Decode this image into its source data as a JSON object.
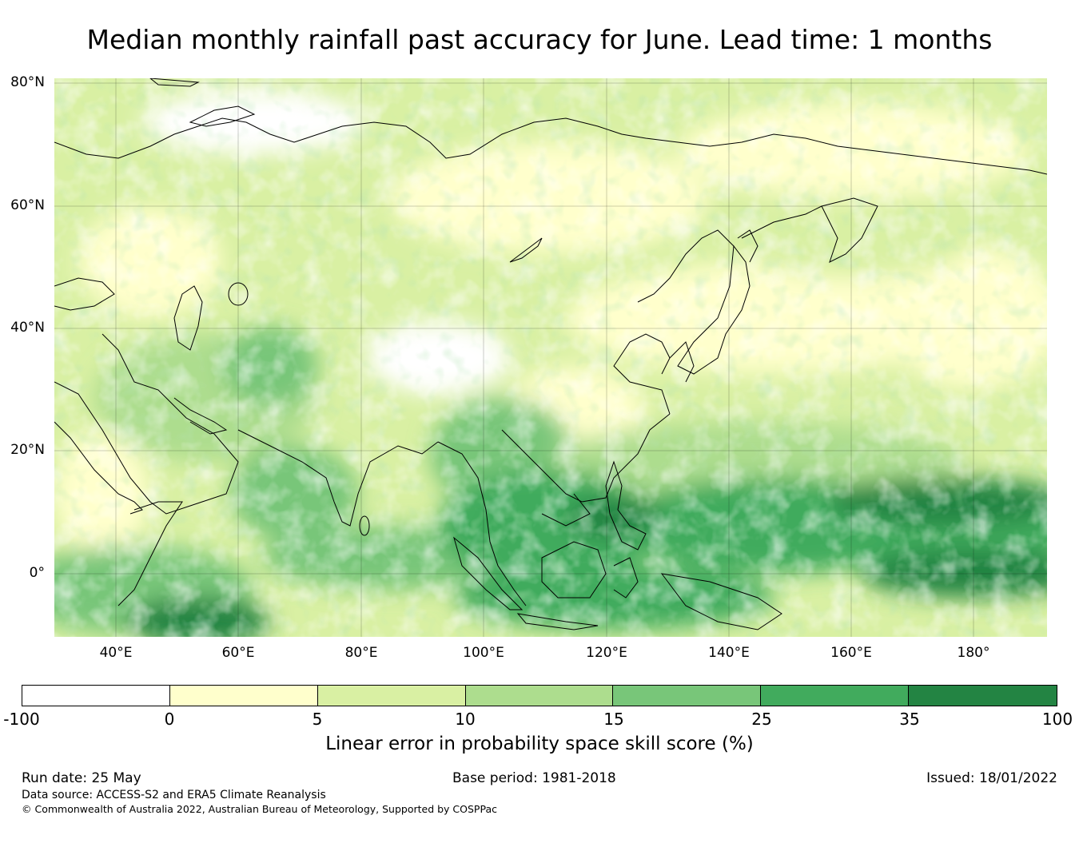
{
  "title": "Median monthly rainfall past accuracy for June. Lead time: 1 months",
  "map": {
    "lat_labels": [
      "80°N",
      "60°N",
      "40°N",
      "20°N",
      "0°"
    ],
    "lon_labels": [
      "40°E",
      "60°E",
      "80°E",
      "100°E",
      "120°E",
      "140°E",
      "160°E",
      "180°"
    ]
  },
  "colorbar": {
    "label": "Linear error in probability space skill score (%)",
    "ticks": [
      "-100",
      "0",
      "5",
      "10",
      "15",
      "25",
      "35",
      "100"
    ],
    "colors": [
      "#ffffff",
      "#ffffcc",
      "#d9f0a3",
      "#addd8e",
      "#78c679",
      "#41ab5d",
      "#238443"
    ]
  },
  "footer": {
    "run_date": "Run date: 25 May",
    "base_period": "Base period: 1981-2018",
    "issued": "Issued: 18/01/2022",
    "data_source": "Data source: ACCESS-S2 and ERA5 Climate Reanalysis",
    "copyright": "© Commonwealth of Australia 2022, Australian Bureau of Meteorology, Supported by COSPPac"
  }
}
